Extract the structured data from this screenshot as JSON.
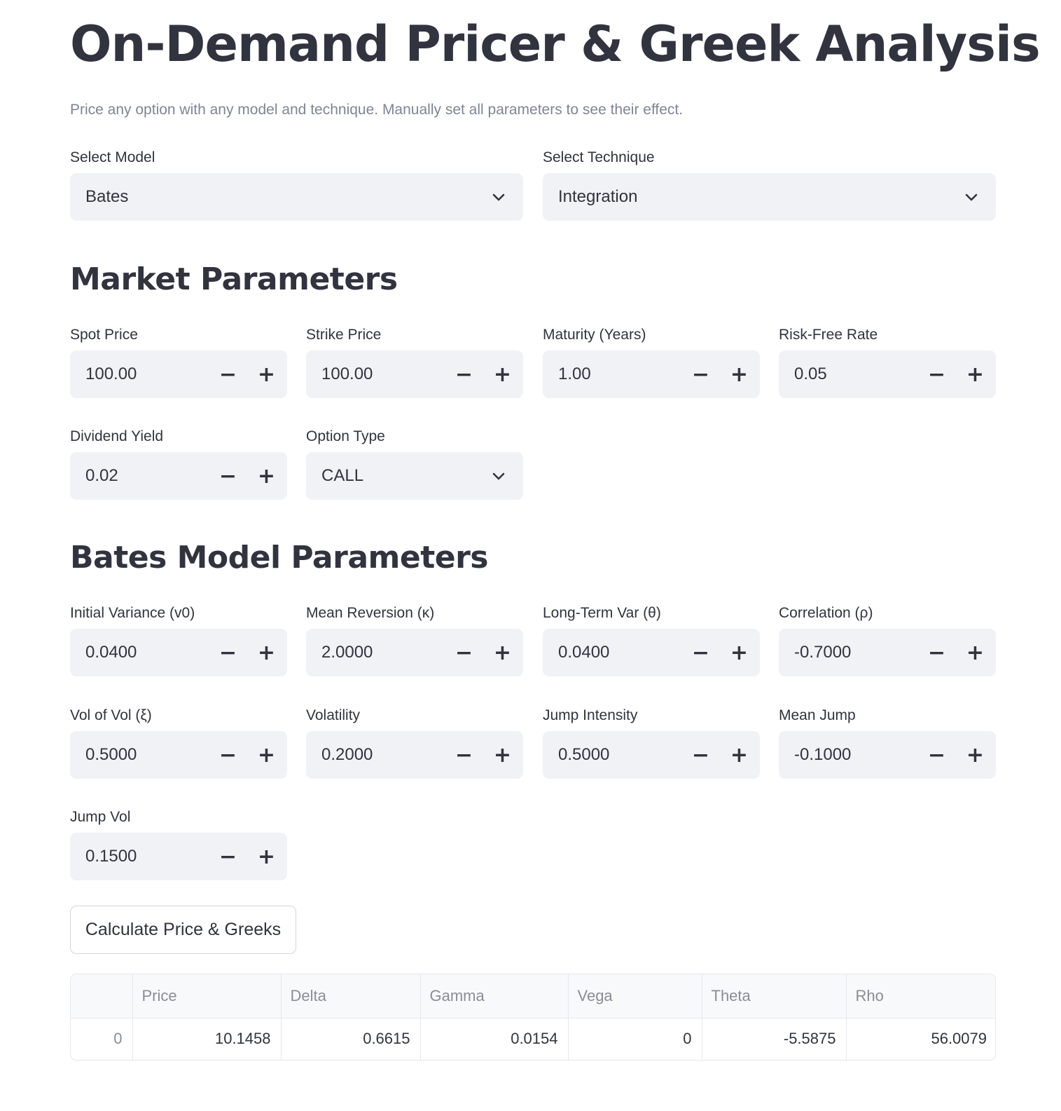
{
  "title": "On-Demand Pricer & Greek Analysis",
  "subtitle": "Price any option with any model and technique. Manually set all parameters to see their effect.",
  "model_select": {
    "label": "Select Model",
    "value": "Bates"
  },
  "technique_select": {
    "label": "Select Technique",
    "value": "Integration"
  },
  "market": {
    "heading": "Market Parameters",
    "spot": {
      "label": "Spot Price",
      "value": "100.00"
    },
    "strike": {
      "label": "Strike Price",
      "value": "100.00"
    },
    "maturity": {
      "label": "Maturity (Years)",
      "value": "1.00"
    },
    "rate": {
      "label": "Risk-Free Rate",
      "value": "0.05"
    },
    "dividend": {
      "label": "Dividend Yield",
      "value": "0.02"
    },
    "option_type": {
      "label": "Option Type",
      "value": "CALL"
    }
  },
  "bates": {
    "heading": "Bates Model Parameters",
    "v0": {
      "label": "Initial Variance (v0)",
      "value": "0.0400"
    },
    "kappa": {
      "label": "Mean Reversion (κ)",
      "value": "2.0000"
    },
    "theta": {
      "label": "Long-Term Var (θ)",
      "value": "0.0400"
    },
    "rho": {
      "label": "Correlation (ρ)",
      "value": "-0.7000"
    },
    "xi": {
      "label": "Vol of Vol (ξ)",
      "value": "0.5000"
    },
    "vol": {
      "label": "Volatility",
      "value": "0.2000"
    },
    "jump_intensity": {
      "label": "Jump Intensity",
      "value": "0.5000"
    },
    "mean_jump": {
      "label": "Mean Jump",
      "value": "-0.1000"
    },
    "jump_vol": {
      "label": "Jump Vol",
      "value": "0.1500"
    }
  },
  "stepper": {
    "minus": "−",
    "plus": "+"
  },
  "calculate_button": "Calculate Price & Greeks",
  "results": {
    "headers": [
      "",
      "Price",
      "Delta",
      "Gamma",
      "Vega",
      "Theta",
      "Rho"
    ],
    "row": [
      "0",
      "10.1458",
      "0.6615",
      "0.0154",
      "0",
      "-5.5875",
      "56.0079"
    ]
  },
  "icons": {
    "dropdown": "chevron-down-icon"
  }
}
